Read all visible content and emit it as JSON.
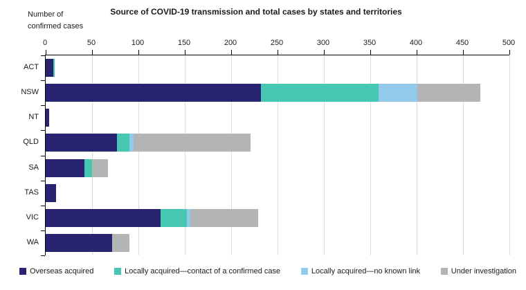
{
  "chart_data": {
    "type": "bar",
    "orientation": "horizontal",
    "stacked": true,
    "title": "Source of COVID-19 transmission and total cases by states and territories",
    "axis_label": "Number of confirmed cases",
    "categories": [
      "ACT",
      "NSW",
      "NT",
      "QLD",
      "SA",
      "TAS",
      "VIC",
      "WA"
    ],
    "series": [
      {
        "name": "Overseas acquired",
        "color": "#282471",
        "values": [
          8,
          232,
          4,
          77,
          42,
          11,
          124,
          72
        ]
      },
      {
        "name": "Locally acquired—contact of a confirmed case",
        "color": "#45C7B2",
        "values": [
          2,
          127,
          0,
          13,
          8,
          0,
          28,
          0
        ]
      },
      {
        "name": "Locally acquired—no known link",
        "color": "#92CAEB",
        "values": [
          0,
          42,
          0,
          5,
          0,
          0,
          4,
          0
        ]
      },
      {
        "name": "Under investigation",
        "color": "#B3B5B4",
        "values": [
          0,
          68,
          0,
          126,
          17,
          0,
          73,
          18
        ]
      }
    ],
    "totals": {
      "ACT": 10,
      "NSW": 469,
      "NT": 4,
      "QLD": 221,
      "SA": 67,
      "TAS": 11,
      "VIC": 229,
      "WA": 90
    },
    "xlim": [
      0,
      500
    ],
    "x_ticks": [
      0,
      50,
      100,
      150,
      200,
      250,
      300,
      350,
      400,
      450,
      500
    ],
    "grid": "vertical",
    "legend_position": "bottom",
    "colors": {
      "axis": "#000000",
      "gridline": "#dbdbdb",
      "text": "#1a1a1a",
      "background": "#ffffff"
    }
  }
}
